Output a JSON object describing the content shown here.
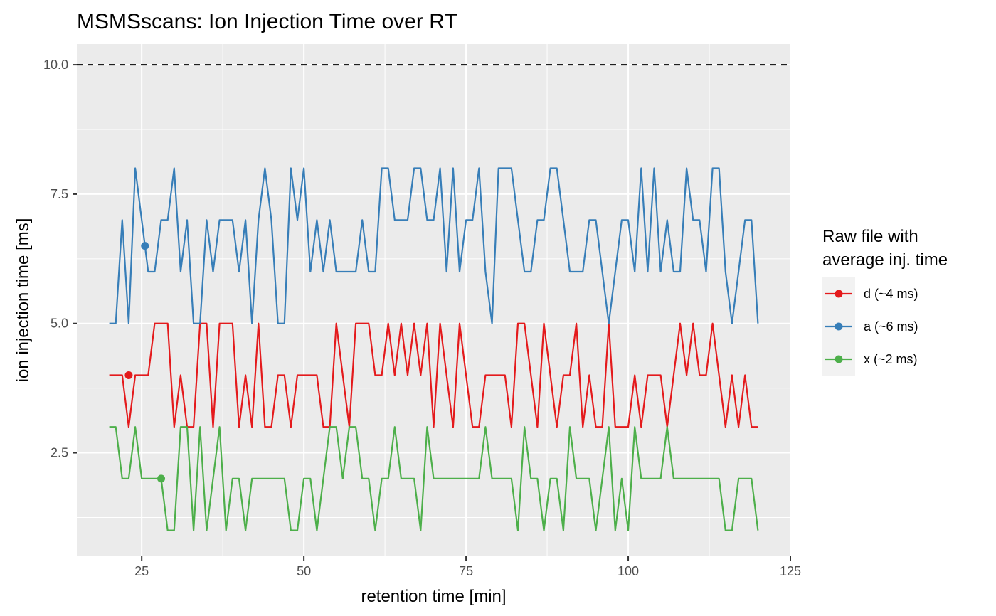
{
  "chart_data": {
    "type": "line",
    "title": "MSMSscans: Ion Injection Time over RT",
    "xlabel": "retention time [min]",
    "ylabel": "ion injection time [ms]",
    "xlim": [
      15,
      125
    ],
    "ylim": [
      0.5,
      10.4
    ],
    "x_ticks": [
      25,
      50,
      75,
      100,
      125
    ],
    "x_tick_labels": [
      "25",
      "50",
      "75",
      "100",
      "125"
    ],
    "y_ticks": [
      2.5,
      5.0,
      7.5,
      10.0
    ],
    "y_tick_labels": [
      "2.5",
      "5.0",
      "7.5",
      "10.0"
    ],
    "grid": true,
    "threshold_line": {
      "y": 10.0,
      "style": "dashed",
      "color": "#000000"
    },
    "legend": {
      "title_lines": [
        "Raw file with",
        "average inj. time"
      ],
      "position": "right"
    },
    "series": [
      {
        "name": "d (~4 ms)",
        "color": "#E41A1C",
        "marker": {
          "x": 23,
          "y": 4
        },
        "x": [
          20,
          21,
          22,
          23,
          24,
          25,
          26,
          27,
          28,
          29,
          30,
          31,
          32,
          33,
          34,
          35,
          36,
          37,
          38,
          39,
          40,
          41,
          42,
          43,
          44,
          45,
          46,
          47,
          48,
          49,
          50,
          51,
          52,
          53,
          54,
          55,
          56,
          57,
          58,
          59,
          60,
          61,
          62,
          63,
          64,
          65,
          66,
          67,
          68,
          69,
          70,
          71,
          72,
          73,
          74,
          75,
          76,
          77,
          78,
          79,
          80,
          81,
          82,
          83,
          84,
          85,
          86,
          87,
          88,
          89,
          90,
          91,
          92,
          93,
          94,
          95,
          96,
          97,
          98,
          99,
          100,
          101,
          102,
          103,
          104,
          105,
          106,
          107,
          108,
          109,
          110,
          111,
          112,
          113,
          114,
          115,
          116,
          117,
          118,
          119,
          120
        ],
        "y": [
          4,
          4,
          4,
          3,
          4,
          4,
          4,
          5,
          5,
          5,
          3,
          4,
          3,
          3,
          5,
          5,
          3,
          5,
          5,
          5,
          3,
          4,
          3,
          5,
          3,
          3,
          4,
          4,
          3,
          4,
          4,
          4,
          4,
          3,
          3,
          5,
          4,
          3,
          5,
          5,
          5,
          4,
          4,
          5,
          4,
          5,
          4,
          5,
          4,
          5,
          3,
          5,
          4,
          3,
          5,
          4,
          3,
          3,
          4,
          4,
          4,
          4,
          3,
          5,
          5,
          4,
          3,
          5,
          4,
          3,
          4,
          4,
          5,
          3,
          4,
          3,
          3,
          5,
          3,
          3,
          3,
          4,
          3,
          4,
          4,
          4,
          3,
          4,
          5,
          4,
          5,
          4,
          4,
          5,
          4,
          3,
          4,
          3,
          4,
          3,
          3
        ]
      },
      {
        "name": "a (~6 ms)",
        "color": "#377EB8",
        "marker": {
          "x": 25.5,
          "y": 6.5
        },
        "x": [
          20,
          21,
          22,
          23,
          24,
          25,
          26,
          27,
          28,
          29,
          30,
          31,
          32,
          33,
          34,
          35,
          36,
          37,
          38,
          39,
          40,
          41,
          42,
          43,
          44,
          45,
          46,
          47,
          48,
          49,
          50,
          51,
          52,
          53,
          54,
          55,
          56,
          57,
          58,
          59,
          60,
          61,
          62,
          63,
          64,
          65,
          66,
          67,
          68,
          69,
          70,
          71,
          72,
          73,
          74,
          75,
          76,
          77,
          78,
          79,
          80,
          81,
          82,
          83,
          84,
          85,
          86,
          87,
          88,
          89,
          90,
          91,
          92,
          93,
          94,
          95,
          96,
          97,
          98,
          99,
          100,
          101,
          102,
          103,
          104,
          105,
          106,
          107,
          108,
          109,
          110,
          111,
          112,
          113,
          114,
          115,
          116,
          117,
          118,
          119,
          120
        ],
        "y": [
          5,
          5,
          7,
          5,
          8,
          7,
          6,
          6,
          7,
          7,
          8,
          6,
          7,
          5,
          5,
          7,
          6,
          7,
          7,
          7,
          6,
          7,
          5,
          7,
          8,
          7,
          5,
          5,
          8,
          7,
          8,
          6,
          7,
          6,
          7,
          6,
          6,
          6,
          6,
          7,
          6,
          6,
          8,
          8,
          7,
          7,
          7,
          8,
          8,
          7,
          7,
          8,
          6,
          8,
          6,
          7,
          7,
          8,
          6,
          5,
          8,
          8,
          8,
          7,
          6,
          6,
          7,
          7,
          8,
          8,
          7,
          6,
          6,
          6,
          7,
          7,
          6,
          5,
          6,
          7,
          7,
          6,
          8,
          6,
          8,
          6,
          7,
          6,
          6,
          8,
          7,
          7,
          6,
          8,
          8,
          6,
          5,
          6,
          7,
          7,
          5
        ]
      },
      {
        "name": "x (~2 ms)",
        "color": "#4DAF4A",
        "marker": {
          "x": 28,
          "y": 2
        },
        "x": [
          20,
          21,
          22,
          23,
          24,
          25,
          26,
          27,
          28,
          29,
          30,
          31,
          32,
          33,
          34,
          35,
          36,
          37,
          38,
          39,
          40,
          41,
          42,
          43,
          44,
          45,
          46,
          47,
          48,
          49,
          50,
          51,
          52,
          53,
          54,
          55,
          56,
          57,
          58,
          59,
          60,
          61,
          62,
          63,
          64,
          65,
          66,
          67,
          68,
          69,
          70,
          71,
          72,
          73,
          74,
          75,
          76,
          77,
          78,
          79,
          80,
          81,
          82,
          83,
          84,
          85,
          86,
          87,
          88,
          89,
          90,
          91,
          92,
          93,
          94,
          95,
          96,
          97,
          98,
          99,
          100,
          101,
          102,
          103,
          104,
          105,
          106,
          107,
          108,
          109,
          110,
          111,
          112,
          113,
          114,
          115,
          116,
          117,
          118,
          119,
          120
        ],
        "y": [
          3,
          3,
          2,
          2,
          3,
          2,
          2,
          2,
          2,
          1,
          1,
          3,
          3,
          1,
          3,
          1,
          2,
          3,
          1,
          2,
          2,
          1,
          2,
          2,
          2,
          2,
          2,
          2,
          1,
          1,
          2,
          2,
          1,
          2,
          3,
          3,
          2,
          3,
          3,
          2,
          2,
          1,
          2,
          2,
          3,
          2,
          2,
          2,
          1,
          3,
          2,
          2,
          2,
          2,
          2,
          2,
          2,
          2,
          3,
          2,
          2,
          2,
          2,
          1,
          3,
          2,
          2,
          1,
          2,
          2,
          1,
          3,
          2,
          2,
          2,
          1,
          2,
          3,
          1,
          2,
          1,
          3,
          2,
          2,
          2,
          2,
          3,
          2,
          2,
          2,
          2,
          2,
          2,
          2,
          2,
          1,
          1,
          2,
          2,
          2,
          1
        ]
      }
    ]
  }
}
